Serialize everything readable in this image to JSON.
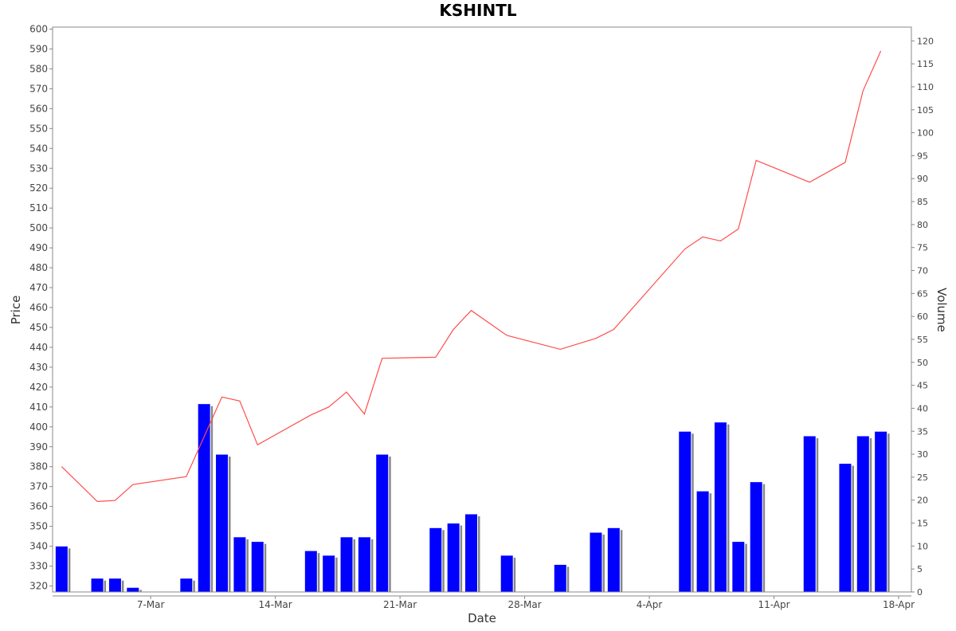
{
  "chart_data": {
    "type": "bar",
    "title": "KSHINTL",
    "xlabel": "Date",
    "ylabel": "Price",
    "y2label": "Volume",
    "price_ylim": [
      317,
      601
    ],
    "price_ticks": [
      320,
      330,
      340,
      350,
      360,
      370,
      380,
      390,
      400,
      410,
      420,
      430,
      440,
      450,
      460,
      470,
      480,
      490,
      500,
      510,
      520,
      530,
      540,
      550,
      560,
      570,
      580,
      590,
      600
    ],
    "volume_ylim": [
      0,
      123
    ],
    "volume_ticks": [
      0,
      5,
      10,
      15,
      20,
      25,
      30,
      35,
      40,
      45,
      50,
      55,
      60,
      65,
      70,
      75,
      80,
      85,
      90,
      95,
      100,
      105,
      110,
      115,
      120
    ],
    "x_range": [
      "2022-03-01",
      "2022-04-18"
    ],
    "x_ticks": [
      {
        "date": "2022-03-07",
        "label": "7-Mar"
      },
      {
        "date": "2022-03-14",
        "label": "14-Mar"
      },
      {
        "date": "2022-03-21",
        "label": "21-Mar"
      },
      {
        "date": "2022-03-28",
        "label": "28-Mar"
      },
      {
        "date": "2022-04-04",
        "label": "4-Apr"
      },
      {
        "date": "2022-04-11",
        "label": "11-Apr"
      },
      {
        "date": "2022-04-18",
        "label": "18-Apr"
      }
    ],
    "grid": false,
    "series": [
      {
        "chart_type": "line",
        "axis": "left",
        "color": "#ff4d4d",
        "points": [
          {
            "x": "2022-03-02",
            "y": 380
          },
          {
            "x": "2022-03-04",
            "y": 362.5
          },
          {
            "x": "2022-03-05",
            "y": 363
          },
          {
            "x": "2022-03-06",
            "y": 371
          },
          {
            "x": "2022-03-09",
            "y": 375
          },
          {
            "x": "2022-03-11",
            "y": 415
          },
          {
            "x": "2022-03-12",
            "y": 413
          },
          {
            "x": "2022-03-13",
            "y": 391
          },
          {
            "x": "2022-03-16",
            "y": 406
          },
          {
            "x": "2022-03-17",
            "y": 410
          },
          {
            "x": "2022-03-18",
            "y": 417.5
          },
          {
            "x": "2022-03-19",
            "y": 406.5
          },
          {
            "x": "2022-03-20",
            "y": 434.5
          },
          {
            "x": "2022-03-23",
            "y": 435
          },
          {
            "x": "2022-03-24",
            "y": 449
          },
          {
            "x": "2022-03-25",
            "y": 458.5
          },
          {
            "x": "2022-03-27",
            "y": 446
          },
          {
            "x": "2022-03-30",
            "y": 439
          },
          {
            "x": "2022-04-01",
            "y": 444.5
          },
          {
            "x": "2022-04-02",
            "y": 449
          },
          {
            "x": "2022-04-06",
            "y": 489.5
          },
          {
            "x": "2022-04-07",
            "y": 495.5
          },
          {
            "x": "2022-04-08",
            "y": 493.5
          },
          {
            "x": "2022-04-09",
            "y": 499.5
          },
          {
            "x": "2022-04-10",
            "y": 534
          },
          {
            "x": "2022-04-13",
            "y": 523
          },
          {
            "x": "2022-04-15",
            "y": 533
          },
          {
            "x": "2022-04-16",
            "y": 569
          },
          {
            "x": "2022-04-17",
            "y": 589
          }
        ]
      },
      {
        "chart_type": "bar",
        "axis": "right",
        "color": "#0000ff",
        "shadow_color": "#888888",
        "points": [
          {
            "x": "2022-03-02",
            "y": 10
          },
          {
            "x": "2022-03-04",
            "y": 3
          },
          {
            "x": "2022-03-05",
            "y": 3
          },
          {
            "x": "2022-03-06",
            "y": 1
          },
          {
            "x": "2022-03-09",
            "y": 3
          },
          {
            "x": "2022-03-10",
            "y": 41
          },
          {
            "x": "2022-03-11",
            "y": 30
          },
          {
            "x": "2022-03-12",
            "y": 12
          },
          {
            "x": "2022-03-13",
            "y": 11
          },
          {
            "x": "2022-03-16",
            "y": 9
          },
          {
            "x": "2022-03-17",
            "y": 8
          },
          {
            "x": "2022-03-18",
            "y": 12
          },
          {
            "x": "2022-03-19",
            "y": 12
          },
          {
            "x": "2022-03-20",
            "y": 30
          },
          {
            "x": "2022-03-23",
            "y": 14
          },
          {
            "x": "2022-03-24",
            "y": 15
          },
          {
            "x": "2022-03-25",
            "y": 17
          },
          {
            "x": "2022-03-27",
            "y": 8
          },
          {
            "x": "2022-03-30",
            "y": 6
          },
          {
            "x": "2022-04-01",
            "y": 13
          },
          {
            "x": "2022-04-02",
            "y": 14
          },
          {
            "x": "2022-04-06",
            "y": 35
          },
          {
            "x": "2022-04-07",
            "y": 22
          },
          {
            "x": "2022-04-08",
            "y": 37
          },
          {
            "x": "2022-04-09",
            "y": 11
          },
          {
            "x": "2022-04-10",
            "y": 24
          },
          {
            "x": "2022-04-13",
            "y": 34
          },
          {
            "x": "2022-04-15",
            "y": 28
          },
          {
            "x": "2022-04-16",
            "y": 34
          },
          {
            "x": "2022-04-17",
            "y": 35
          }
        ]
      }
    ]
  }
}
